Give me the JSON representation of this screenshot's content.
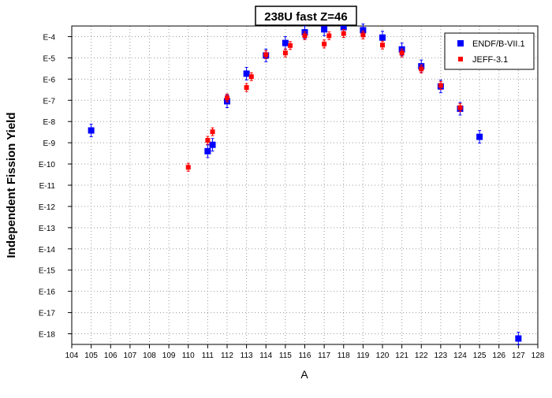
{
  "chart_data": {
    "type": "scatter",
    "title": "238U fast Z=46",
    "xlabel": "A",
    "ylabel": "Independent Fission Yield",
    "xlim": [
      104,
      128
    ],
    "x_ticks": [
      104,
      105,
      106,
      107,
      108,
      109,
      110,
      111,
      112,
      113,
      114,
      115,
      116,
      117,
      118,
      119,
      120,
      121,
      122,
      123,
      124,
      125,
      126,
      127,
      128
    ],
    "y_scale": "log",
    "ylim_exponent": [
      -18.5,
      -3.5
    ],
    "y_ticks": [
      {
        "exp": -4,
        "label": "E-4"
      },
      {
        "exp": -5,
        "label": "E-5"
      },
      {
        "exp": -6,
        "label": "E-6"
      },
      {
        "exp": -7,
        "label": "E-7"
      },
      {
        "exp": -8,
        "label": "E-8"
      },
      {
        "exp": -9,
        "label": "E-9"
      },
      {
        "exp": -10,
        "label": "E-10"
      },
      {
        "exp": -11,
        "label": "E-11"
      },
      {
        "exp": -12,
        "label": "E-12"
      },
      {
        "exp": -13,
        "label": "E-13"
      },
      {
        "exp": -14,
        "label": "E-14"
      },
      {
        "exp": -15,
        "label": "E-15"
      },
      {
        "exp": -16,
        "label": "E-16"
      },
      {
        "exp": -17,
        "label": "E-17"
      },
      {
        "exp": -18,
        "label": "E-18"
      }
    ],
    "grid": true,
    "legend_position": "top-right",
    "series": [
      {
        "name": "ENDF/B-VII.1",
        "color": "#0000ff",
        "marker": "square",
        "points": [
          {
            "x": 105,
            "y": 3.8e-09
          },
          {
            "x": 111,
            "y": 4e-10
          },
          {
            "x": 111.25,
            "y": 8e-10
          },
          {
            "x": 112,
            "y": 9e-08
          },
          {
            "x": 113,
            "y": 1.8e-06
          },
          {
            "x": 114,
            "y": 1.3e-05
          },
          {
            "x": 115,
            "y": 5e-05
          },
          {
            "x": 116,
            "y": 0.00016
          },
          {
            "x": 117,
            "y": 0.00022
          },
          {
            "x": 118,
            "y": 0.00028
          },
          {
            "x": 119,
            "y": 0.0002
          },
          {
            "x": 120,
            "y": 9e-05
          },
          {
            "x": 121,
            "y": 2.5e-05
          },
          {
            "x": 122,
            "y": 4e-06
          },
          {
            "x": 123,
            "y": 4.5e-07
          },
          {
            "x": 124,
            "y": 4e-08
          },
          {
            "x": 125,
            "y": 1.9e-09
          },
          {
            "x": 127,
            "y": 6e-19
          }
        ]
      },
      {
        "name": "JEFF-3.1",
        "color": "#ff0000",
        "marker": "square",
        "points": [
          {
            "x": 110,
            "y": 7e-11
          },
          {
            "x": 111,
            "y": 1.3e-09
          },
          {
            "x": 111.25,
            "y": 3.3e-09
          },
          {
            "x": 112,
            "y": 1.3e-07
          },
          {
            "x": 113,
            "y": 4e-07
          },
          {
            "x": 113.25,
            "y": 1.3e-06
          },
          {
            "x": 114,
            "y": 1.4e-05
          },
          {
            "x": 115,
            "y": 1.7e-05
          },
          {
            "x": 115.25,
            "y": 3.8e-05
          },
          {
            "x": 116,
            "y": 0.00011
          },
          {
            "x": 117,
            "y": 4.5e-05
          },
          {
            "x": 117.25,
            "y": 0.00011
          },
          {
            "x": 118,
            "y": 0.00014
          },
          {
            "x": 119,
            "y": 0.00012
          },
          {
            "x": 120,
            "y": 4e-05
          },
          {
            "x": 121,
            "y": 1.7e-05
          },
          {
            "x": 122,
            "y": 3e-06
          },
          {
            "x": 123,
            "y": 5e-07
          },
          {
            "x": 124,
            "y": 4.5e-08
          }
        ]
      }
    ]
  }
}
